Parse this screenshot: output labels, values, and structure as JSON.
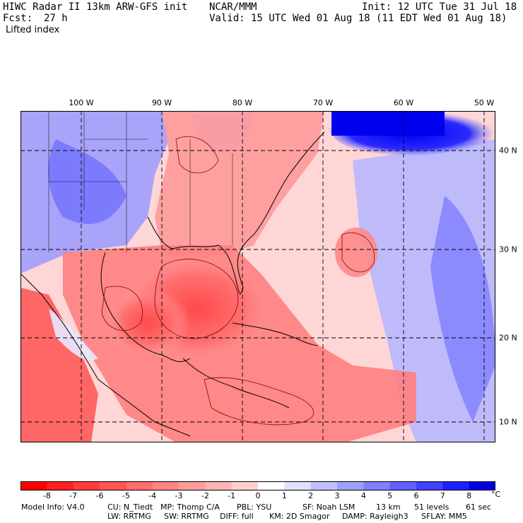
{
  "header": {
    "title": "HIWC Radar II 13km ARW-GFS init",
    "org": "NCAR/MMM",
    "init": "Init: 12 UTC Tue 31 Jul 18",
    "fcst_label": "Fcst:",
    "fcst_value": "27 h",
    "valid": "Valid: 15 UTC Wed 01 Aug 18 (11 EDT Wed 01 Aug 18)",
    "field": "Lifted index"
  },
  "map": {
    "lon_labels": [
      "100 W",
      "90 W",
      "80 W",
      "70 W",
      "60 W",
      "50 W"
    ],
    "lat_labels": [
      "40 N",
      "30 N",
      "20 N",
      "10 N"
    ],
    "colors": {
      "warm_strong": "#ff4040",
      "warm": "#ff8080",
      "warm_light": "#ffc8c8",
      "neutral": "#ffffff",
      "cool_light": "#c8c8ff",
      "cool": "#6a6aff",
      "cool_strong": "#0000ee",
      "coast": "#000000",
      "contour": "#8b0000"
    }
  },
  "colorbar": {
    "labels": [
      "-8",
      "-7",
      "-6",
      "-5",
      "-4",
      "-3",
      "-2",
      "-1",
      "0",
      "1",
      "2",
      "3",
      "4",
      "5",
      "6",
      "7",
      "8"
    ],
    "unit": "°C",
    "colors": [
      "#ff0000",
      "#ff2020",
      "#ff3c3c",
      "#ff5555",
      "#ff6c6c",
      "#ff8484",
      "#ff9c9c",
      "#ffb4b4",
      "#ffd0d0",
      "#ffffff",
      "#e0e0ff",
      "#c0c0ff",
      "#a0a0ff",
      "#8080ff",
      "#6060ff",
      "#4040ff",
      "#2020ff",
      "#0000e0"
    ]
  },
  "footer": {
    "line1_left": "Model Info: V4.0",
    "line1_cu": "CU: N_Tiedt",
    "line1_mp": "MP: Thomp C/A",
    "line1_pbl": "PBL: YSU",
    "line1_sf": "SF: Noah LSM",
    "line1_res": "13 km",
    "line1_levels": "51 levels",
    "line1_dt": "61 sec",
    "line2_lw": "LW: RRTMG",
    "line2_sw": "SW: RRTMG",
    "line2_diff": "DIFF: full",
    "line2_km": "KM: 2D Smagor",
    "line2_damp": "DAMP: Rayleigh3",
    "line2_sflay": "SFLAY: MM5"
  }
}
